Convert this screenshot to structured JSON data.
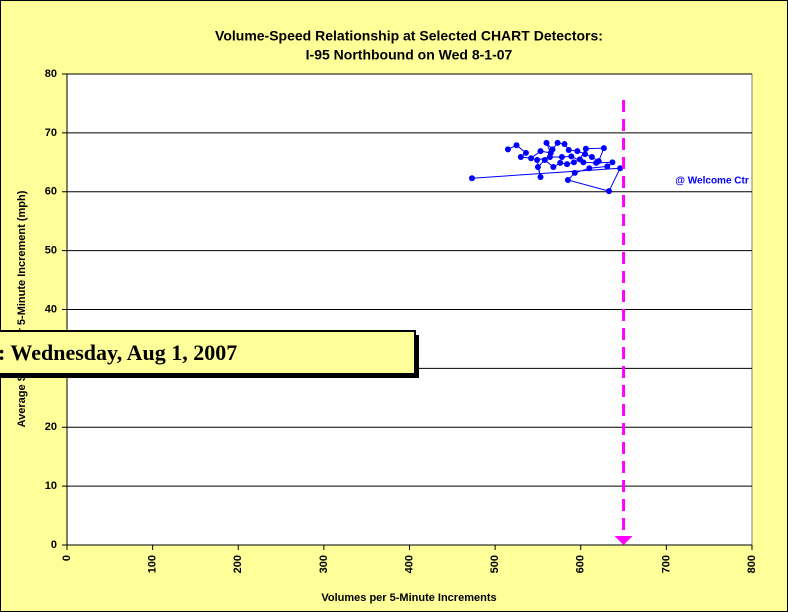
{
  "chart_data": {
    "type": "scatter",
    "title": "Volume-Speed Relationship at Selected CHART Detectors:",
    "subtitle": "I-95 Northbound on Wed 8-1-07",
    "x_label": "Volumes per 5-Minute Increments",
    "y_label": "Average Speed per 5-Minute Increment (mph)",
    "annotation": "@ Welcome Ctr",
    "date_box": ": Wednesday, Aug 1, 2007",
    "color": "#0000ff",
    "reference_x": 650,
    "reference_color": "#ff00ff",
    "x": [
      473,
      646,
      633,
      585,
      593,
      610,
      631,
      637,
      618,
      603,
      589,
      578,
      564,
      549,
      553,
      550,
      558,
      568,
      576,
      584,
      592,
      599,
      606,
      627,
      621,
      613,
      605,
      596,
      586,
      581,
      573,
      567,
      560,
      565,
      553,
      542,
      530,
      536,
      525,
      515
    ],
    "values": [
      62.3,
      64.0,
      60.1,
      62.0,
      63.2,
      64.0,
      64.3,
      65.0,
      64.9,
      65.0,
      66.0,
      65.9,
      65.9,
      65.4,
      62.5,
      64.2,
      65.4,
      64.2,
      64.9,
      64.7,
      65.0,
      65.5,
      67.3,
      67.4,
      65.2,
      65.9,
      66.4,
      66.9,
      67.1,
      68.1,
      68.3,
      67.2,
      68.3,
      66.6,
      66.9,
      65.7,
      65.9,
      66.6,
      67.9,
      67.2
    ],
    "xlim": [
      0,
      800
    ],
    "xticks": [
      0,
      100,
      200,
      300,
      400,
      500,
      600,
      700,
      800
    ],
    "ylim": [
      0,
      80
    ],
    "yticks": [
      0,
      10,
      20,
      30,
      40,
      50,
      60,
      70,
      80
    ],
    "grid": true
  }
}
